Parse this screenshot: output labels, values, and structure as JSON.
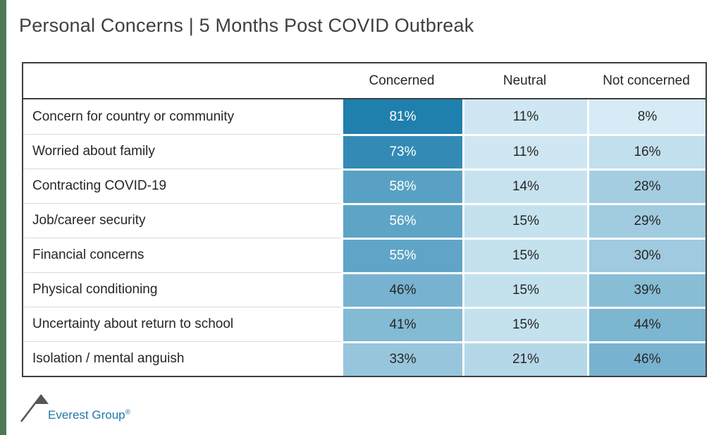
{
  "title": "Personal Concerns | 5 Months Post COVID Outbreak",
  "chart_data": {
    "type": "heatmap",
    "title": "Personal Concerns | 5 Months Post COVID Outbreak",
    "columns": [
      "Concerned",
      "Neutral",
      "Not concerned"
    ],
    "rows": [
      "Concern for country or community",
      "Worried about family",
      "Contracting COVID-19",
      "Job/career security",
      "Financial concerns",
      "Physical conditioning",
      "Uncertainty about return to school",
      "Isolation / mental anguish"
    ],
    "values": [
      [
        81,
        11,
        8
      ],
      [
        73,
        11,
        16
      ],
      [
        58,
        14,
        28
      ],
      [
        56,
        15,
        29
      ],
      [
        55,
        15,
        30
      ],
      [
        46,
        15,
        39
      ],
      [
        41,
        15,
        44
      ],
      [
        33,
        21,
        46
      ]
    ],
    "value_suffix": "%",
    "color_scale": {
      "min_value": 8,
      "max_value": 81,
      "min_color": "#d6ebf5",
      "max_color": "#1f7fad",
      "white_text_min": 55
    },
    "legend_position": "none",
    "grid": false
  },
  "logo": {
    "text": "Everest Group",
    "registered": "®"
  },
  "colors": {
    "accent_bar": "#4d7a55",
    "table_border": "#3f3f3f",
    "row_divider": "#d9d9d9",
    "title_text": "#3f3f3f",
    "logo_blue": "#2177a8",
    "logo_mountain": "#55565a"
  }
}
